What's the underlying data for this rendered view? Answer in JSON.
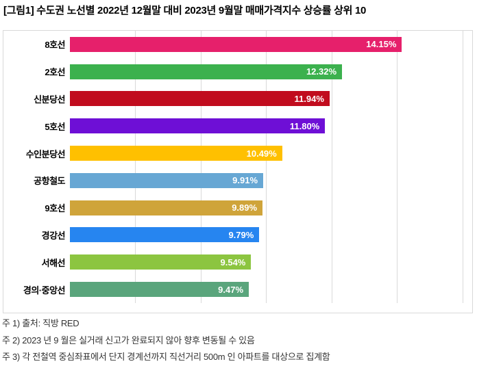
{
  "title": "[그림1] 수도권 노선별 2022년 12월말 대비 2023년 9월말 매매가격지수 상승률 상위 10",
  "chart_data": {
    "type": "bar",
    "orientation": "horizontal",
    "title": "[그림1] 수도권 노선별 2022년 12월말 대비 2023년 9월말 매매가격지수 상승률 상위 10",
    "xlabel": "",
    "ylabel": "",
    "categories": [
      "8호선",
      "2호선",
      "신분당선",
      "5호선",
      "수인분당선",
      "공항철도",
      "9호선",
      "경강선",
      "서해선",
      "경의·중앙선"
    ],
    "values": [
      14.15,
      12.32,
      11.94,
      11.8,
      10.49,
      9.91,
      9.89,
      9.79,
      9.54,
      9.47
    ],
    "value_labels": [
      "14.15%",
      "12.32%",
      "11.94%",
      "11.80%",
      "10.49%",
      "9.91%",
      "9.89%",
      "9.79%",
      "9.54%",
      "9.47%"
    ],
    "bar_colors": [
      "#E6206B",
      "#3CB14E",
      "#C10C1E",
      "#6E0FD6",
      "#FFC000",
      "#67A7D4",
      "#CFA43A",
      "#2685F0",
      "#8CC540",
      "#5AA57C"
    ],
    "xlim": [
      4,
      16.3
    ],
    "gridline_values": [
      6,
      8,
      10,
      12,
      14,
      16
    ],
    "grid": "vertical-only",
    "legend": "none",
    "value_labels_position": "inside-end",
    "value_label_color": "#FFFFFF"
  },
  "footnotes": [
    "주 1) 출처: 직방 RED",
    "주 2) 2023 년 9 월은 실거래 신고가 완료되지 않아 향후 변동될 수 있음",
    "주 3) 각 전철역 중심좌표에서 단지 경계선까지 직선거리 500m 인 아파트를 대상으로 집계함"
  ],
  "colors": {
    "background": "#FFFFFF",
    "chart_border": "#D9D9D9",
    "gridline": "#D9D9D9",
    "title_text": "#000000",
    "category_text": "#000000",
    "note_text": "#333333"
  }
}
